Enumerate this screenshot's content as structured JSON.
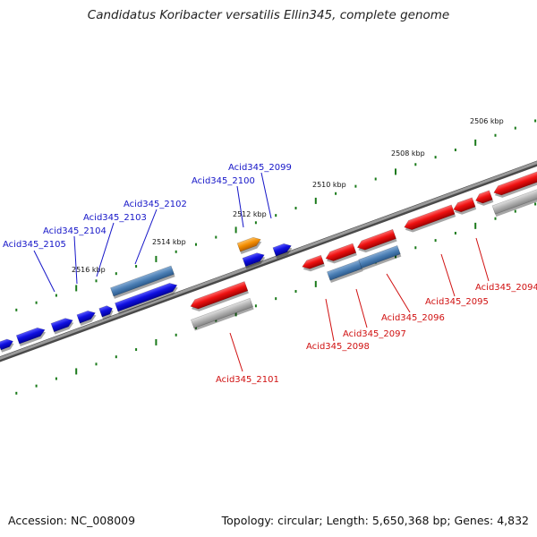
{
  "title": "Candidatus Koribacter versatilis Ellin345, complete genome",
  "footer": {
    "accession": "Accession: NC_008009",
    "info": "Topology: circular; Length: 5,650,368 bp; Genes: 4,832"
  },
  "colors": {
    "backbone": "#7a7a7a",
    "forward_gene": "#1010e0",
    "reverse_gene": "#e01010",
    "forward_label": "#1515c8",
    "reverse_label": "#d01010",
    "rna_gene": "#f28c00",
    "ticks": "#1a7a1a",
    "steel": "#4a7eb4",
    "gray_feature": "#a8a8a8"
  },
  "scale_ticks": [
    "2506 kbp",
    "2508 kbp",
    "2510 kbp",
    "2512 kbp",
    "2514 kbp",
    "2516 kbp"
  ],
  "forward_genes": [
    "Acid345_2099",
    "Acid345_2100",
    "Acid345_2102",
    "Acid345_2103",
    "Acid345_2104",
    "Acid345_2105"
  ],
  "reverse_genes": [
    "Acid345_2094",
    "Acid345_2095",
    "Acid345_2096",
    "Acid345_2097",
    "Acid345_2098",
    "Acid345_2101"
  ]
}
